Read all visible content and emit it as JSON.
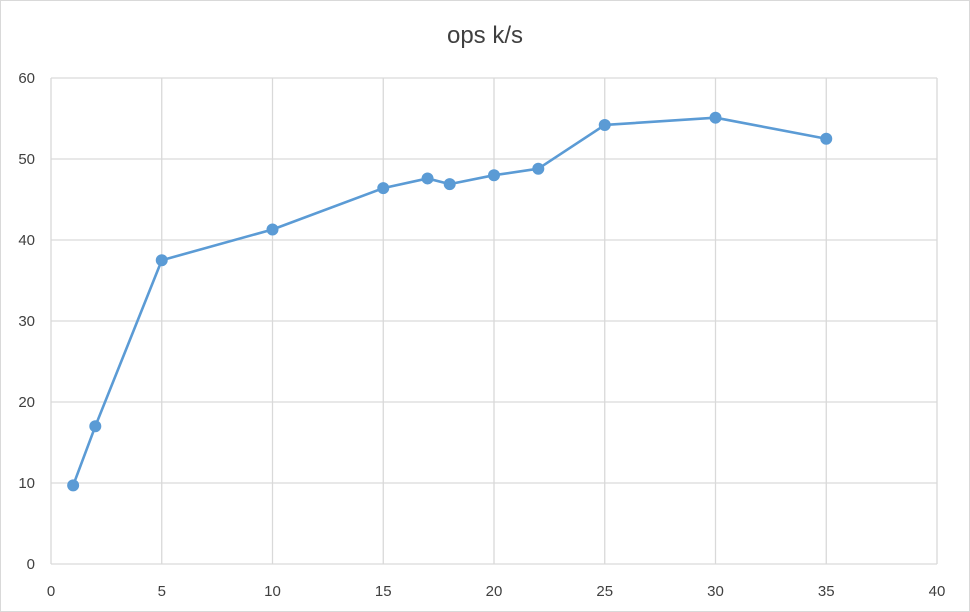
{
  "chart_data": {
    "type": "scatter",
    "title": "ops k/s",
    "xlabel": "",
    "ylabel": "",
    "xlim": [
      0,
      40
    ],
    "ylim": [
      0,
      60
    ],
    "x_ticks": [
      "0",
      "5",
      "10",
      "15",
      "20",
      "25",
      "30",
      "35",
      "40"
    ],
    "y_ticks": [
      "0",
      "10",
      "20",
      "30",
      "40",
      "50",
      "60"
    ],
    "grid": true,
    "legend": "none",
    "series": [
      {
        "color": "#5b9bd5",
        "marker": "circle",
        "line": "straight",
        "x": [
          1,
          2,
          5,
          10,
          15,
          17,
          18,
          20,
          22,
          25,
          30,
          35
        ],
        "y": [
          9.7,
          17.0,
          37.5,
          41.3,
          46.4,
          47.6,
          46.9,
          48.0,
          48.8,
          54.2,
          55.1,
          52.5
        ]
      }
    ]
  }
}
